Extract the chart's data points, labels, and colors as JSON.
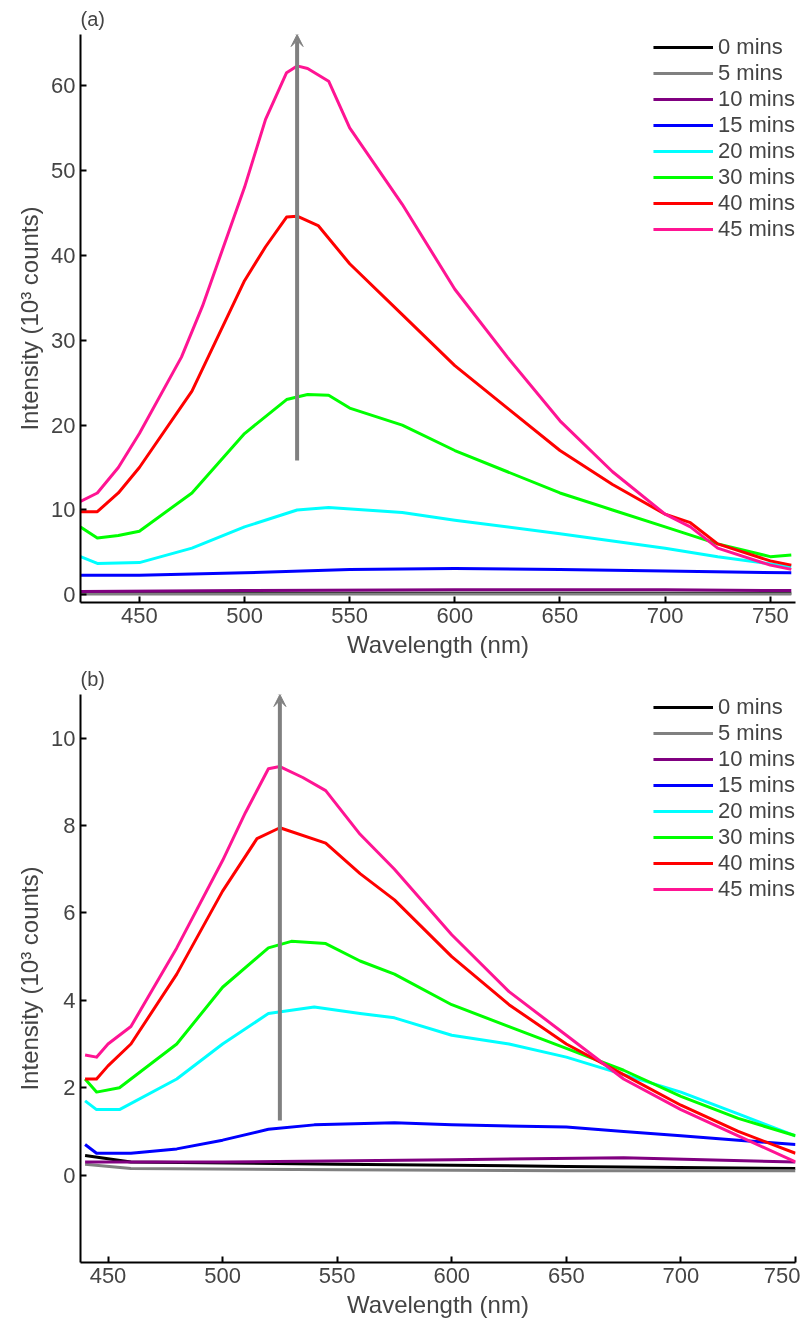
{
  "chart_data": [
    {
      "type": "line",
      "title": "(a)",
      "xlabel": "Wavelength (nm)",
      "ylabel": "Intensity (10³ counts)",
      "xlim": [
        422,
        762
      ],
      "ylim": [
        -0.9,
        66
      ],
      "xticks": [
        450,
        500,
        550,
        600,
        650,
        700,
        750
      ],
      "yticks": [
        0,
        10,
        20,
        30,
        40,
        50,
        60
      ],
      "grid": false,
      "legend": "top right",
      "line_style": "solid",
      "marker": "none",
      "series": [
        {
          "name": "0 mins",
          "color": "#000000",
          "x": [
            422,
            500,
            600,
            700,
            760
          ],
          "values": [
            0.2,
            0.2,
            0.2,
            0.2,
            0.2
          ]
        },
        {
          "name": "5 mins",
          "color": "#808080",
          "x": [
            422,
            500,
            600,
            700,
            760
          ],
          "values": [
            0.1,
            0.1,
            0.1,
            0.1,
            0.1
          ]
        },
        {
          "name": "10 mins",
          "color": "#800080",
          "x": [
            422,
            500,
            600,
            700,
            760
          ],
          "values": [
            0.4,
            0.5,
            0.6,
            0.6,
            0.5
          ]
        },
        {
          "name": "15 mins",
          "color": "#0000ff",
          "x": [
            422,
            450,
            500,
            550,
            600,
            650,
            700,
            760
          ],
          "values": [
            2.3,
            2.3,
            2.6,
            3.0,
            3.1,
            3.0,
            2.8,
            2.6
          ]
        },
        {
          "name": "20 mins",
          "color": "#00ffff",
          "x": [
            422,
            430,
            450,
            475,
            500,
            525,
            540,
            575,
            600,
            650,
            700,
            725,
            760
          ],
          "values": [
            4.5,
            3.7,
            3.8,
            5.5,
            8,
            10,
            10.3,
            9.7,
            8.8,
            7.2,
            5.5,
            4.5,
            3.3
          ]
        },
        {
          "name": "30 mins",
          "color": "#00ff00",
          "x": [
            422,
            430,
            440,
            450,
            475,
            500,
            520,
            530,
            540,
            550,
            575,
            600,
            625,
            650,
            675,
            700,
            725,
            750,
            760
          ],
          "values": [
            8,
            6.7,
            7,
            7.5,
            12,
            19,
            23,
            23.6,
            23.5,
            22,
            20,
            17,
            14.5,
            12,
            10,
            8,
            6,
            4.5,
            4.7
          ]
        },
        {
          "name": "40 mins",
          "color": "#ff0000",
          "x": [
            422,
            430,
            440,
            450,
            475,
            500,
            510,
            520,
            525,
            535,
            550,
            575,
            600,
            625,
            650,
            675,
            700,
            712,
            725,
            750,
            760
          ],
          "values": [
            9.8,
            9.8,
            12,
            15,
            24,
            37,
            41,
            44.5,
            44.6,
            43.5,
            39,
            33,
            27,
            22,
            17,
            13,
            9.5,
            8.5,
            6,
            4,
            3.5
          ]
        },
        {
          "name": "45 mins",
          "color": "#ff1493",
          "x": [
            422,
            430,
            440,
            450,
            470,
            480,
            500,
            510,
            520,
            525,
            530,
            540,
            550,
            575,
            600,
            625,
            650,
            675,
            700,
            712,
            725,
            750,
            760
          ],
          "values": [
            11,
            12,
            15,
            19,
            28,
            34,
            48,
            56,
            61.5,
            62.3,
            62,
            60.5,
            55,
            46,
            36,
            28,
            20.5,
            14.5,
            9.5,
            8,
            5.5,
            3.5,
            3
          ]
        }
      ]
    },
    {
      "type": "line",
      "title": "(b)",
      "xlabel": "Wavelength (nm)",
      "ylabel": "Intensity (10³ counts)",
      "xlim": [
        438,
        750
      ],
      "ylim": [
        -2,
        11
      ],
      "xticks": [
        450,
        500,
        550,
        600,
        650,
        700,
        750
      ],
      "yticks": [
        0,
        2,
        4,
        6,
        8,
        10
      ],
      "grid": false,
      "legend": "top right",
      "line_style": "solid",
      "marker": "none",
      "series": [
        {
          "name": "0 mins",
          "color": "#000000",
          "x": [
            440,
            460,
            550,
            650,
            750
          ],
          "values": [
            0.45,
            0.3,
            0.25,
            0.2,
            0.15
          ]
        },
        {
          "name": "5 mins",
          "color": "#808080",
          "x": [
            440,
            460,
            550,
            650,
            750
          ],
          "values": [
            0.25,
            0.15,
            0.12,
            0.1,
            0.1
          ]
        },
        {
          "name": "10 mins",
          "color": "#800080",
          "x": [
            440,
            500,
            600,
            675,
            750
          ],
          "values": [
            0.3,
            0.3,
            0.35,
            0.4,
            0.3
          ]
        },
        {
          "name": "15 mins",
          "color": "#0000ff",
          "x": [
            440,
            445,
            460,
            480,
            500,
            520,
            540,
            575,
            600,
            650,
            675,
            700,
            725,
            750
          ],
          "values": [
            0.7,
            0.5,
            0.5,
            0.6,
            0.8,
            1.05,
            1.15,
            1.2,
            1.15,
            1.1,
            1.0,
            0.9,
            0.8,
            0.7
          ]
        },
        {
          "name": "20 mins",
          "color": "#00ffff",
          "x": [
            440,
            445,
            455,
            480,
            500,
            520,
            540,
            560,
            575,
            600,
            625,
            650,
            675,
            700,
            725,
            750
          ],
          "values": [
            1.7,
            1.5,
            1.5,
            2.2,
            3.0,
            3.7,
            3.85,
            3.7,
            3.6,
            3.2,
            3.0,
            2.7,
            2.3,
            1.9,
            1.4,
            0.9
          ]
        },
        {
          "name": "30 mins",
          "color": "#00ff00",
          "x": [
            440,
            445,
            455,
            480,
            500,
            520,
            530,
            545,
            560,
            575,
            600,
            625,
            650,
            675,
            700,
            725,
            750
          ],
          "values": [
            2.2,
            1.9,
            2.0,
            3.0,
            4.3,
            5.2,
            5.35,
            5.3,
            4.9,
            4.6,
            3.9,
            3.4,
            2.9,
            2.4,
            1.8,
            1.3,
            0.9
          ]
        },
        {
          "name": "40 mins",
          "color": "#ff0000",
          "x": [
            440,
            445,
            450,
            460,
            480,
            500,
            515,
            525,
            545,
            560,
            575,
            600,
            625,
            650,
            675,
            700,
            725,
            750
          ],
          "values": [
            2.2,
            2.2,
            2.5,
            3.0,
            4.6,
            6.5,
            7.7,
            7.95,
            7.6,
            6.9,
            6.3,
            5.0,
            3.9,
            3.0,
            2.3,
            1.6,
            1.0,
            0.5
          ]
        },
        {
          "name": "45 mins",
          "color": "#ff1493",
          "x": [
            440,
            445,
            450,
            460,
            480,
            500,
            510,
            520,
            525,
            535,
            545,
            560,
            575,
            600,
            625,
            650,
            675,
            700,
            725,
            750
          ],
          "values": [
            2.75,
            2.7,
            3.0,
            3.4,
            5.2,
            7.2,
            8.3,
            9.3,
            9.35,
            9.1,
            8.8,
            7.8,
            7.0,
            5.5,
            4.2,
            3.2,
            2.2,
            1.5,
            0.9,
            0.3
          ]
        }
      ]
    }
  ]
}
